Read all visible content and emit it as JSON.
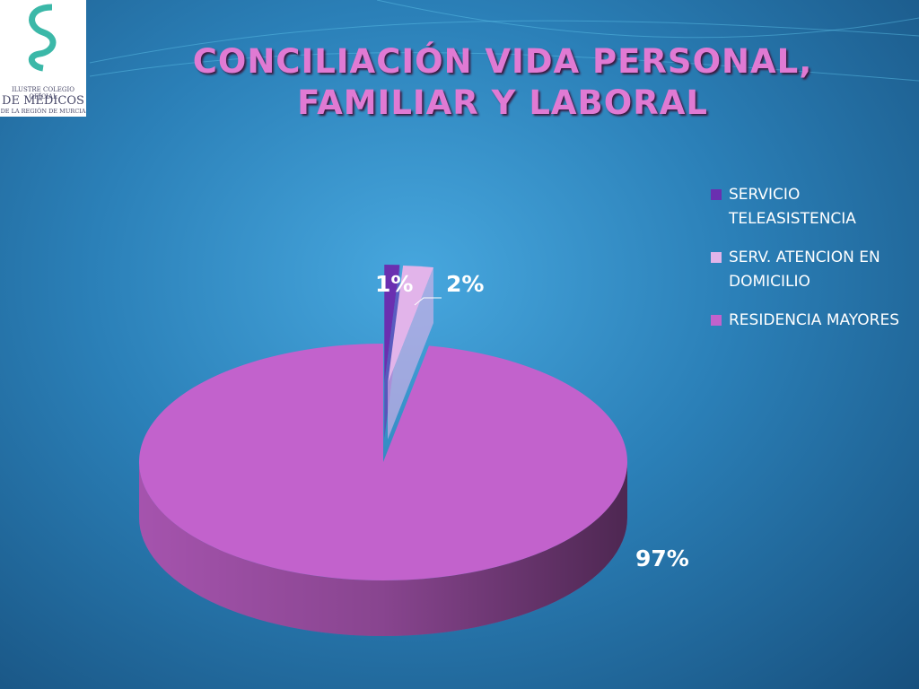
{
  "logo": {
    "lines": [
      "ILUSTRE COLEGIO OFICIAL",
      "DE MÉDICOS",
      "DE LA REGIÓN DE MURCIA"
    ]
  },
  "chart_data": {
    "type": "pie3d",
    "title": "CONCILIACIÓN VIDA PERSONAL, FAMILIAR Y LABORAL",
    "categories": [
      "SERVICIO TELEASISTENCIA",
      "SERV. ATENCION EN DOMICILIO",
      "RESIDENCIA MAYORES"
    ],
    "values": [
      1,
      2,
      97
    ],
    "value_labels": [
      "1%",
      "2%",
      "97%"
    ],
    "colors": [
      "#6a2fb0",
      "#e2b4ea",
      "#c262cc"
    ],
    "legend": "right"
  }
}
